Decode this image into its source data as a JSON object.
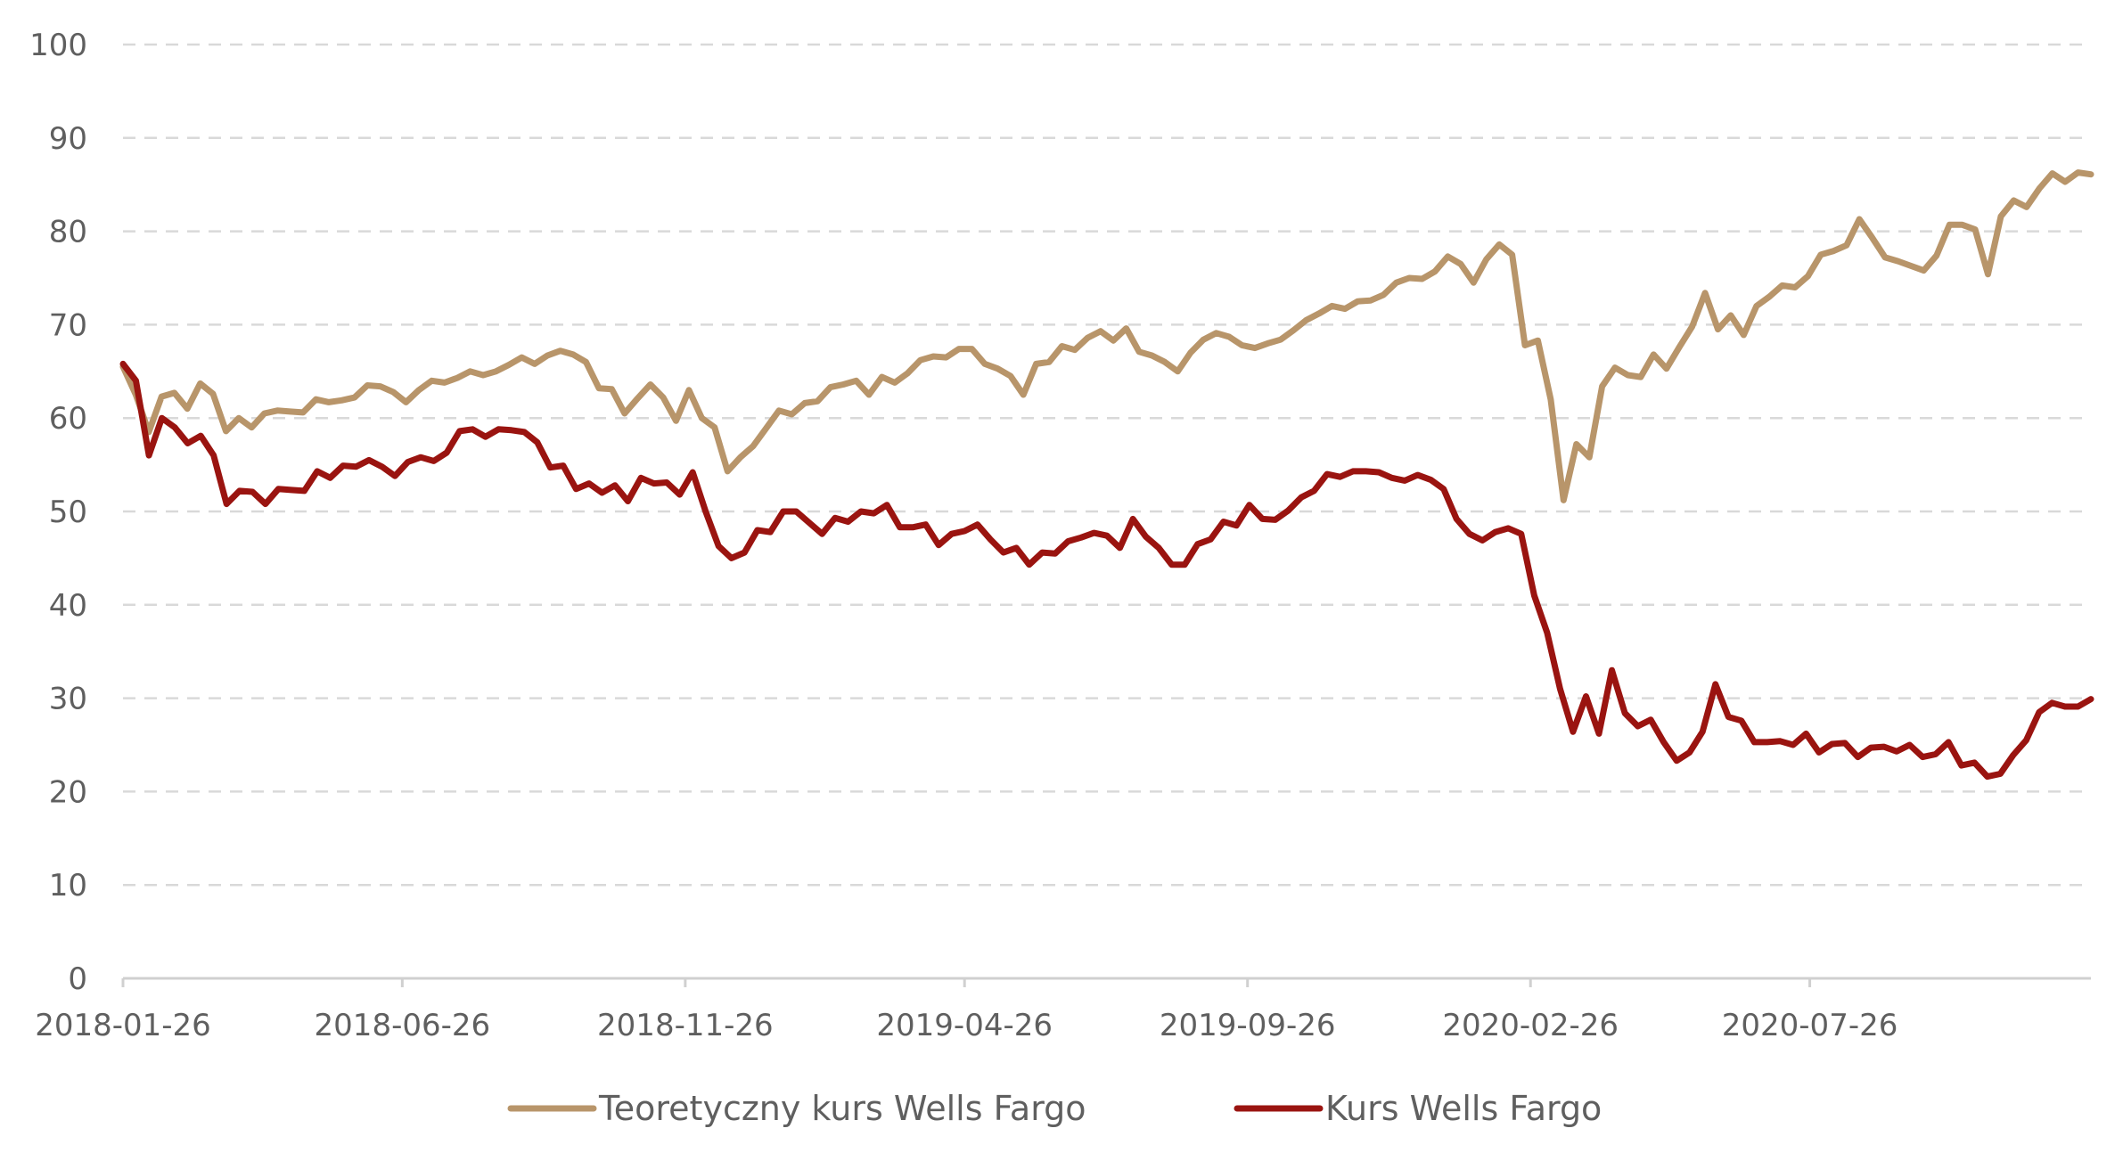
{
  "chart_data": {
    "type": "line",
    "title": "",
    "xlabel": "",
    "ylabel": "",
    "ylim": [
      0,
      100
    ],
    "y_ticks": [
      "0",
      "10",
      "20",
      "30",
      "40",
      "50",
      "60",
      "70",
      "80",
      "90",
      "100"
    ],
    "x_tick_labels": [
      "2018-01-26",
      "2018-06-26",
      "2018-11-26",
      "2019-04-26",
      "2019-09-26",
      "2020-02-26",
      "2020-07-26"
    ],
    "x_range": [
      "2018-01-26",
      "2020-12-25"
    ],
    "grid": "horizontal dashed",
    "legend_position": "bottom-center",
    "series": [
      {
        "name": "Teoretyczny kurs Wells Fargo",
        "color": "#b8956a",
        "values": [
          65.5,
          62.5,
          58.5,
          62.3,
          62.7,
          61.0,
          63.7,
          62.6,
          58.6,
          60.0,
          59.0,
          60.5,
          60.8,
          60.7,
          60.6,
          62.0,
          61.7,
          61.9,
          62.2,
          63.5,
          63.4,
          62.8,
          61.7,
          63.0,
          64.0,
          63.8,
          64.3,
          65.0,
          64.6,
          65.0,
          65.7,
          66.5,
          65.8,
          66.7,
          67.2,
          66.8,
          66.0,
          63.2,
          63.1,
          60.5,
          62.1,
          63.6,
          62.2,
          59.7,
          63.0,
          60.0,
          59.0,
          54.3,
          55.8,
          57.0,
          58.9,
          60.8,
          60.4,
          61.6,
          61.8,
          63.3,
          63.6,
          64.0,
          62.5,
          64.4,
          63.8,
          64.8,
          66.2,
          66.6,
          66.5,
          67.4,
          67.4,
          65.8,
          65.3,
          64.5,
          62.5,
          65.8,
          66.0,
          67.7,
          67.3,
          68.6,
          69.3,
          68.3,
          69.6,
          67.1,
          66.7,
          66.0,
          65.0,
          67.0,
          68.4,
          69.1,
          68.7,
          67.8,
          67.5,
          68.0,
          68.4,
          69.4,
          70.5,
          71.2,
          72.0,
          71.7,
          72.5,
          72.6,
          73.2,
          74.5,
          75.0,
          74.9,
          75.7,
          77.3,
          76.5,
          74.5,
          77.0,
          78.6,
          77.5,
          67.8,
          68.3,
          62.0,
          51.2,
          57.2,
          55.8,
          63.4,
          65.4,
          64.6,
          64.4,
          66.8,
          65.3,
          67.6,
          69.8,
          73.4,
          69.5,
          71.0,
          68.9,
          72.0,
          73.0,
          74.2,
          74.0,
          75.2,
          77.5,
          77.9,
          78.5,
          81.3,
          79.3,
          77.2,
          76.8,
          76.3,
          75.8,
          77.4,
          80.7,
          80.7,
          80.2,
          75.4,
          81.6,
          83.3,
          82.6,
          84.6,
          86.2,
          85.3,
          86.3,
          86.1
        ]
      },
      {
        "name": "Kurs Wells Fargo",
        "color": "#9a1410",
        "values": [
          65.8,
          64.0,
          56.0,
          60.0,
          59.0,
          57.3,
          58.1,
          56.0,
          50.8,
          52.2,
          52.1,
          50.8,
          52.4,
          52.3,
          52.2,
          54.3,
          53.6,
          54.9,
          54.8,
          55.5,
          54.8,
          53.8,
          55.3,
          55.8,
          55.4,
          56.3,
          58.6,
          58.8,
          58.0,
          58.8,
          58.7,
          58.5,
          57.4,
          54.7,
          54.9,
          52.4,
          53.0,
          52.0,
          52.8,
          51.1,
          53.6,
          53.0,
          53.1,
          51.8,
          54.2,
          50.0,
          46.3,
          45.0,
          45.6,
          48.0,
          47.8,
          50.0,
          50.0,
          48.8,
          47.6,
          49.3,
          48.9,
          50.0,
          49.8,
          50.7,
          48.3,
          48.3,
          48.6,
          46.4,
          47.6,
          47.9,
          48.6,
          47.0,
          45.6,
          46.1,
          44.3,
          45.6,
          45.5,
          46.8,
          47.2,
          47.7,
          47.4,
          46.1,
          49.2,
          47.3,
          46.1,
          44.3,
          44.3,
          46.5,
          47.0,
          48.9,
          48.5,
          50.7,
          49.2,
          49.1,
          50.1,
          51.5,
          52.2,
          54.0,
          53.7,
          54.3,
          54.3,
          54.2,
          53.6,
          53.3,
          53.9,
          53.4,
          52.4,
          49.2,
          47.6,
          46.9,
          47.8,
          48.2,
          47.6,
          41.0,
          37.0,
          31.0,
          26.4,
          30.2,
          26.2,
          33.0,
          28.4,
          27.0,
          27.7,
          25.3,
          23.3,
          24.2,
          26.4,
          31.5,
          28.0,
          27.6,
          25.3,
          25.3,
          25.4,
          25.0,
          26.2,
          24.2,
          25.1,
          25.2,
          23.7,
          24.7,
          24.8,
          24.3,
          25.0,
          23.7,
          24.0,
          25.3,
          22.8,
          23.1,
          21.6,
          21.9,
          23.9,
          25.5,
          28.5,
          29.5,
          29.1,
          29.1,
          29.9
        ]
      }
    ]
  }
}
